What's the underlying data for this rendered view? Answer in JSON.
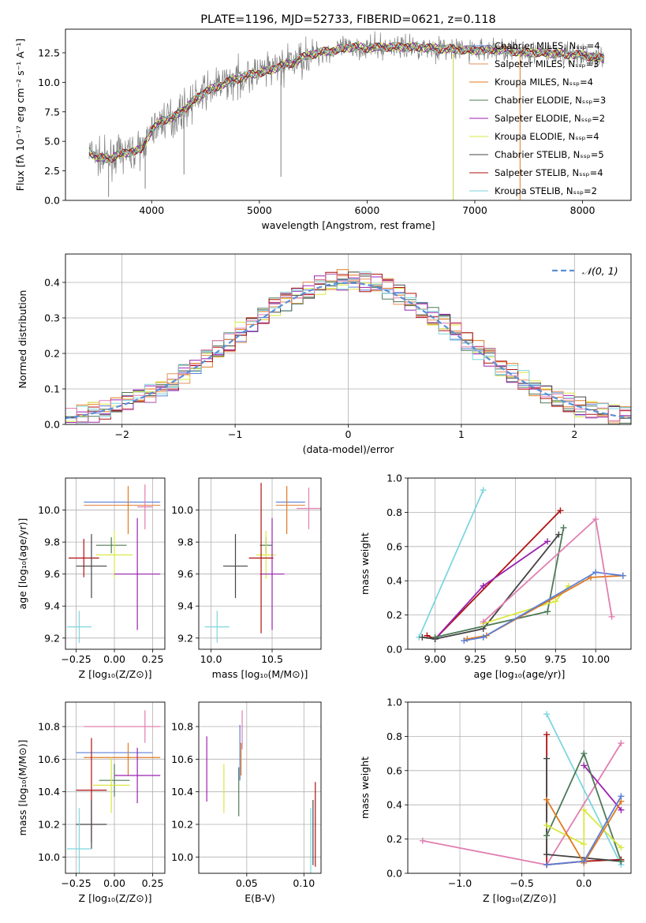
{
  "colors": {
    "Chabrier MILES": "#5b7fd6",
    "Salpeter MILES": "#e5925a",
    "Kroupa MILES": "#e07a20",
    "Chabrier ELODIE": "#4d7a57",
    "Salpeter ELODIE": "#9b22b0",
    "Kroupa ELODIE": "#d9e842",
    "Chabrier STELIB": "#444444",
    "Salpeter STELIB": "#b01010",
    "Kroupa STELIB": "#7ed6df",
    "pink": "#e07fb0",
    "data": "#7f7f7f",
    "normal": "#5b8fd6",
    "grid": "#b0b0b0"
  },
  "chart_data": [
    {
      "id": "spectrum",
      "type": "line",
      "title": "PLATE=1196, MJD=52733, FIBERID=0621, z=0.118",
      "xlabel": "wavelength [Angstrom, rest frame]",
      "ylabel": "Flux [fλ 10⁻¹⁷ erg cm⁻² s⁻¹ A⁻¹]",
      "xlim": [
        3200,
        8450
      ],
      "ylim": [
        0,
        14.5
      ],
      "xticks": [
        "4000",
        "5000",
        "6000",
        "7000",
        "8000"
      ],
      "yticks": [
        "0.0",
        "2.5",
        "5.0",
        "7.5",
        "10.0",
        "12.5"
      ],
      "continuum": [
        [
          3420,
          4.2
        ],
        [
          3500,
          3.6
        ],
        [
          3600,
          3.5
        ],
        [
          3700,
          3.9
        ],
        [
          3800,
          4.1
        ],
        [
          3900,
          4.3
        ],
        [
          4000,
          5.9
        ],
        [
          4100,
          6.8
        ],
        [
          4200,
          7.0
        ],
        [
          4300,
          7.7
        ],
        [
          4400,
          8.5
        ],
        [
          4500,
          9.2
        ],
        [
          4600,
          9.6
        ],
        [
          4700,
          10.0
        ],
        [
          4800,
          10.3
        ],
        [
          4900,
          10.6
        ],
        [
          5000,
          10.8
        ],
        [
          5100,
          11.0
        ],
        [
          5200,
          11.4
        ],
        [
          5300,
          11.6
        ],
        [
          5400,
          12.1
        ],
        [
          5500,
          12.4
        ],
        [
          5600,
          12.6
        ],
        [
          5700,
          12.7
        ],
        [
          5800,
          12.9
        ],
        [
          5900,
          13.0
        ],
        [
          6000,
          12.9
        ],
        [
          6200,
          13.0
        ],
        [
          6400,
          13.0
        ],
        [
          6600,
          12.9
        ],
        [
          6800,
          12.8
        ],
        [
          7000,
          12.7
        ],
        [
          7200,
          12.8
        ],
        [
          7400,
          12.6
        ],
        [
          7600,
          12.5
        ],
        [
          7800,
          12.4
        ],
        [
          8000,
          12.3
        ],
        [
          8200,
          12.0
        ]
      ],
      "legend_placement": "right",
      "legend": [
        "Chabrier MILES, Nₛₛₚ=4",
        "Salpeter MILES, Nₛₛₚ=3",
        "Kroupa MILES, Nₛₛₚ=4",
        "Chabrier ELODIE, Nₛₛₚ=3",
        "Salpeter ELODIE, Nₛₛₚ=2",
        "Kroupa ELODIE, Nₛₛₚ=4",
        "Chabrier STELIB, Nₛₛₚ=5",
        "Salpeter STELIB, Nₛₛₚ=4",
        "Kroupa STELIB, Nₛₛₚ=2"
      ],
      "grid": false
    },
    {
      "id": "residuals",
      "type": "line",
      "xlabel": "(data-model)/error",
      "ylabel": "Normed distribution",
      "xlim": [
        -2.5,
        2.5
      ],
      "ylim": [
        0,
        0.48
      ],
      "xticks": [
        "−2",
        "−1",
        "0",
        "1",
        "2"
      ],
      "yticks": [
        "0.0",
        "0.1",
        "0.2",
        "0.3",
        "0.4"
      ],
      "legend": [
        "𝒩(0, 1)"
      ],
      "legend_placement": "upper right",
      "grid": true
    },
    {
      "id": "age-Z",
      "type": "scatter",
      "xlabel": "Z [log₁₀(Z/Z⊙)]",
      "ylabel": "age  [log₁₀(age/yr)]",
      "xlim": [
        -0.32,
        0.33
      ],
      "ylim": [
        9.13,
        10.2
      ],
      "xticks": [
        "−0.25",
        "0.00",
        "0.25"
      ],
      "yticks": [
        "9.2",
        "9.4",
        "9.6",
        "9.8",
        "10.0"
      ],
      "points": [
        {
          "s": "Chabrier MILES",
          "x": 0.05,
          "y": 10.05,
          "xe": 0.25,
          "ye": 0.0
        },
        {
          "s": "Salpeter MILES",
          "x": 0.05,
          "y": 10.03,
          "xe": 0.25,
          "ye": 0.0
        },
        {
          "s": "Kroupa MILES",
          "x": 0.09,
          "y": 10.0,
          "xe": 0.0,
          "ye": 0.15
        },
        {
          "s": "pink",
          "x": 0.2,
          "y": 10.02,
          "xe": 0.05,
          "ye": 0.14
        },
        {
          "s": "Chabrier ELODIE",
          "x": -0.02,
          "y": 9.78,
          "xe": 0.1,
          "ye": 0.05
        },
        {
          "s": "Kroupa ELODIE",
          "x": 0.0,
          "y": 9.72,
          "xe": 0.12,
          "ye": 0.15
        },
        {
          "s": "Salpeter ELODIE",
          "x": 0.15,
          "y": 9.6,
          "xe": 0.15,
          "ye": 0.35
        },
        {
          "s": "Salpeter STELIB",
          "x": -0.2,
          "y": 9.7,
          "xe": 0.1,
          "ye": 0.12
        },
        {
          "s": "Chabrier STELIB",
          "x": -0.15,
          "y": 9.65,
          "xe": 0.1,
          "ye": 0.2
        },
        {
          "s": "Kroupa STELIB",
          "x": -0.23,
          "y": 9.27,
          "xe": 0.08,
          "ye": 0.1
        }
      ],
      "grid": true
    },
    {
      "id": "age-mass",
      "type": "scatter",
      "xlabel": "mass [log₁₀(M/M⊙)]",
      "xlim": [
        9.9,
        10.9
      ],
      "ylim": [
        9.13,
        10.2
      ],
      "xticks": [
        "10.0",
        "10.5"
      ],
      "yticks": [
        "9.2",
        "9.4",
        "9.6",
        "9.8",
        "10.0"
      ],
      "points": [
        {
          "s": "Chabrier MILES",
          "x": 10.65,
          "y": 10.05,
          "xe": 0.12,
          "ye": 0.0
        },
        {
          "s": "Kroupa MILES",
          "x": 10.62,
          "y": 10.0,
          "xe": 0.0,
          "ye": 0.15
        },
        {
          "s": "Salpeter MILES",
          "x": 10.65,
          "y": 10.03,
          "xe": 0.12,
          "ye": 0.0
        },
        {
          "s": "pink",
          "x": 10.8,
          "y": 10.01,
          "xe": 0.1,
          "ye": 0.13
        },
        {
          "s": "Chabrier ELODIE",
          "x": 10.45,
          "y": 9.78,
          "xe": 0.05,
          "ye": 0.05
        },
        {
          "s": "Kroupa ELODIE",
          "x": 10.45,
          "y": 9.72,
          "xe": 0.08,
          "ye": 0.15
        },
        {
          "s": "Salpeter ELODIE",
          "x": 10.5,
          "y": 9.6,
          "xe": 0.1,
          "ye": 0.35
        },
        {
          "s": "Salpeter STELIB",
          "x": 10.41,
          "y": 9.7,
          "xe": 0.1,
          "ye": 0.47
        },
        {
          "s": "Chabrier STELIB",
          "x": 10.2,
          "y": 9.65,
          "xe": 0.1,
          "ye": 0.2
        },
        {
          "s": "Kroupa STELIB",
          "x": 10.05,
          "y": 9.27,
          "xe": 0.1,
          "ye": 0.1
        }
      ],
      "grid": true
    },
    {
      "id": "weight-age",
      "type": "line",
      "xlabel": "age  [log₁₀(age/yr)]",
      "ylabel": "mass weight",
      "xlim": [
        8.83,
        10.22
      ],
      "ylim": [
        0,
        1.0
      ],
      "xticks": [
        "9.00",
        "9.25",
        "9.50",
        "9.75",
        "10.00"
      ],
      "yticks": [
        "0.0",
        "0.2",
        "0.4",
        "0.6",
        "0.8",
        "1.0"
      ],
      "series": [
        {
          "s": "Kroupa STELIB",
          "x": [
            8.9,
            9.3
          ],
          "y": [
            0.07,
            0.93
          ]
        },
        {
          "s": "Salpeter STELIB",
          "x": [
            8.95,
            9.0,
            9.78
          ],
          "y": [
            0.08,
            0.06,
            0.81
          ]
        },
        {
          "s": "Salpeter ELODIE",
          "x": [
            9.0,
            9.3,
            9.7
          ],
          "y": [
            0.06,
            0.37,
            0.63
          ]
        },
        {
          "s": "Chabrier STELIB",
          "x": [
            8.92,
            9.0,
            9.3,
            9.77
          ],
          "y": [
            0.07,
            0.06,
            0.12,
            0.67
          ]
        },
        {
          "s": "Chabrier ELODIE",
          "x": [
            9.0,
            9.7,
            9.8
          ],
          "y": [
            0.07,
            0.22,
            0.71
          ]
        },
        {
          "s": "Kroupa ELODIE",
          "x": [
            9.3,
            9.75,
            9.83
          ],
          "y": [
            0.15,
            0.28,
            0.37
          ]
        },
        {
          "s": "Kroupa MILES",
          "x": [
            9.2,
            9.32,
            9.97,
            10.17
          ],
          "y": [
            0.06,
            0.08,
            0.42,
            0.43
          ]
        },
        {
          "s": "Chabrier MILES",
          "x": [
            9.18,
            9.3,
            10.0,
            10.17
          ],
          "y": [
            0.05,
            0.07,
            0.45,
            0.43
          ]
        },
        {
          "s": "pink",
          "x": [
            9.3,
            10.0,
            10.1
          ],
          "y": [
            0.16,
            0.76,
            0.19
          ]
        }
      ],
      "grid": true
    },
    {
      "id": "mass-Z",
      "type": "scatter",
      "xlabel": "Z [log₁₀(Z/Z⊙)]",
      "ylabel": "mass [log₁₀(M/M⊙)]",
      "xlim": [
        -0.32,
        0.33
      ],
      "ylim": [
        9.9,
        10.95
      ],
      "xticks": [
        "−0.25",
        "0.00",
        "0.25"
      ],
      "yticks": [
        "10.0",
        "10.2",
        "10.4",
        "10.6",
        "10.8"
      ],
      "points": [
        {
          "s": "pink",
          "x": 0.05,
          "y": 10.8,
          "xe": 0.25,
          "ye": 0.0
        },
        {
          "s": "Chabrier MILES",
          "x": 0.0,
          "y": 10.64,
          "xe": 0.25,
          "ye": 0.0
        },
        {
          "s": "Kroupa MILES",
          "x": 0.05,
          "y": 10.61,
          "xe": 0.25,
          "ye": 0.0
        },
        {
          "s": "Kroupa MILES",
          "x": 0.09,
          "y": 10.6,
          "xe": 0.0,
          "ye": 0.1
        },
        {
          "s": "pink",
          "x": 0.2,
          "y": 10.8,
          "xe": 0.0,
          "ye": 0.1
        },
        {
          "s": "Salpeter ELODIE",
          "x": 0.15,
          "y": 10.5,
          "xe": 0.15,
          "ye": 0.17
        },
        {
          "s": "Chabrier ELODIE",
          "x": 0.0,
          "y": 10.47,
          "xe": 0.1,
          "ye": 0.1
        },
        {
          "s": "Kroupa ELODIE",
          "x": -0.02,
          "y": 10.44,
          "xe": 0.12,
          "ye": 0.17
        },
        {
          "s": "Salpeter STELIB",
          "x": -0.15,
          "y": 10.41,
          "xe": 0.1,
          "ye": 0.32
        },
        {
          "s": "Chabrier STELIB",
          "x": -0.15,
          "y": 10.2,
          "xe": 0.1,
          "ye": 0.15
        },
        {
          "s": "Kroupa STELIB",
          "x": -0.23,
          "y": 10.05,
          "xe": 0.08,
          "ye": 0.25
        }
      ],
      "grid": true
    },
    {
      "id": "mass-ebv",
      "type": "scatter",
      "xlabel": "E(B-V)",
      "xlim": [
        0.008,
        0.115
      ],
      "ylim": [
        9.9,
        10.95
      ],
      "xticks": [
        "0.05",
        "0.10"
      ],
      "yticks": [
        "10.0",
        "10.2",
        "10.4",
        "10.6",
        "10.8"
      ],
      "points": [
        {
          "s": "Salpeter ELODIE",
          "x": 0.015,
          "y": 10.54,
          "xe": 0.0,
          "ye": 0.2
        },
        {
          "s": "Kroupa ELODIE",
          "x": 0.03,
          "y": 10.42,
          "xe": 0.0,
          "ye": 0.15
        },
        {
          "s": "Chabrier ELODIE",
          "x": 0.043,
          "y": 10.4,
          "xe": 0.0,
          "ye": 0.15
        },
        {
          "s": "Chabrier MILES",
          "x": 0.044,
          "y": 10.64,
          "xe": 0.0,
          "ye": 0.17
        },
        {
          "s": "pink",
          "x": 0.046,
          "y": 10.78,
          "xe": 0.0,
          "ye": 0.12
        },
        {
          "s": "Kroupa MILES",
          "x": 0.045,
          "y": 10.6,
          "xe": 0.0,
          "ye": 0.1
        },
        {
          "s": "Kroupa STELIB",
          "x": 0.106,
          "y": 10.1,
          "xe": 0.0,
          "ye": 0.2
        },
        {
          "s": "Chabrier STELIB",
          "x": 0.108,
          "y": 10.15,
          "xe": 0.0,
          "ye": 0.2
        },
        {
          "s": "Salpeter STELIB",
          "x": 0.11,
          "y": 10.2,
          "xe": 0.0,
          "ye": 0.26
        }
      ],
      "grid": true
    },
    {
      "id": "weight-Z",
      "type": "line",
      "xlabel": "Z [log₁₀(Z/Z⊙)]",
      "ylabel": "mass weight",
      "xlim": [
        -1.42,
        0.38
      ],
      "ylim": [
        0,
        1.0
      ],
      "xticks": [
        "−1.0",
        "−0.5",
        "0.0"
      ],
      "yticks": [
        "0.0",
        "0.2",
        "0.4",
        "0.6",
        "0.8",
        "1.0"
      ],
      "series": [
        {
          "s": "pink",
          "x": [
            -1.3,
            -0.3,
            0.3
          ],
          "y": [
            0.19,
            0.05,
            0.76
          ]
        },
        {
          "s": "Kroupa STELIB",
          "x": [
            -0.3,
            0.3
          ],
          "y": [
            0.93,
            0.05
          ]
        },
        {
          "s": "Salpeter STELIB",
          "x": [
            -0.3,
            -0.3,
            0.0,
            0.3
          ],
          "y": [
            0.81,
            0.05,
            0.07,
            0.08
          ]
        },
        {
          "s": "Salpeter ELODIE",
          "x": [
            0.0,
            0.3
          ],
          "y": [
            0.63,
            0.37
          ]
        },
        {
          "s": "Chabrier STELIB",
          "x": [
            -0.3,
            -0.3,
            0.3
          ],
          "y": [
            0.67,
            0.11,
            0.07
          ]
        },
        {
          "s": "Chabrier ELODIE",
          "x": [
            -0.3,
            0.0,
            0.3
          ],
          "y": [
            0.22,
            0.7,
            0.07
          ]
        },
        {
          "s": "Kroupa ELODIE",
          "x": [
            -0.3,
            0.0,
            0.0,
            0.3
          ],
          "y": [
            0.28,
            0.17,
            0.37,
            0.15
          ]
        },
        {
          "s": "Kroupa MILES",
          "x": [
            -0.3,
            0.0,
            0.3
          ],
          "y": [
            0.43,
            0.06,
            0.42
          ]
        },
        {
          "s": "Chabrier MILES",
          "x": [
            -0.3,
            0.0,
            0.3
          ],
          "y": [
            0.05,
            0.07,
            0.45
          ]
        }
      ],
      "grid": true
    }
  ]
}
